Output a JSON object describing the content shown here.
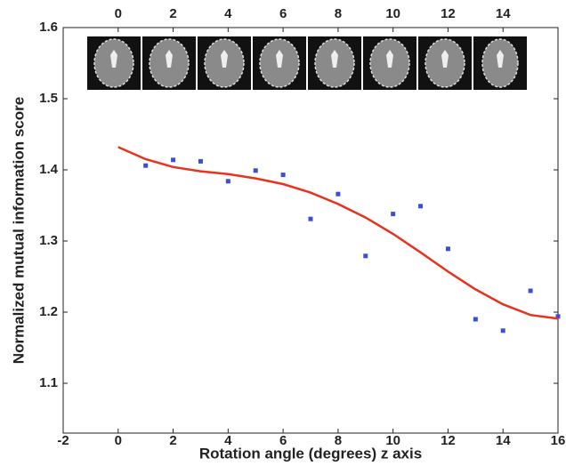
{
  "chart_data": {
    "type": "scatter",
    "xlabel": "Rotation angle (degrees) z axis",
    "ylabel": "Normalized mutual information score",
    "xlim": [
      -2,
      16
    ],
    "xticks": [
      -2,
      0,
      2,
      4,
      6,
      8,
      10,
      12,
      14,
      16
    ],
    "x2ticks": [
      0,
      2,
      4,
      6,
      8,
      10,
      12,
      14
    ],
    "ylim": [
      1.03,
      1.6
    ],
    "yticks": [
      1.1,
      1.2,
      1.3,
      1.4,
      1.5,
      1.6
    ],
    "series": [
      {
        "type": "scatter",
        "color": "#3b4fd6",
        "x": [
          1,
          2,
          3,
          4,
          5,
          6,
          7,
          8,
          9,
          10,
          11,
          12,
          13,
          14,
          15,
          16
        ],
        "values": [
          1.406,
          1.414,
          1.412,
          1.384,
          1.399,
          1.393,
          1.331,
          1.366,
          1.279,
          1.338,
          1.349,
          1.289,
          1.19,
          1.174,
          1.23,
          1.194
        ]
      },
      {
        "type": "line",
        "color": "#e8321e",
        "x": [
          0,
          1,
          2,
          3,
          4,
          5,
          6,
          7,
          8,
          9,
          10,
          11,
          12,
          13,
          14,
          15,
          16
        ],
        "values": [
          1.432,
          1.415,
          1.404,
          1.398,
          1.394,
          1.388,
          1.38,
          1.368,
          1.352,
          1.333,
          1.31,
          1.284,
          1.257,
          1.232,
          1.211,
          1.196,
          1.191
        ]
      }
    ]
  }
}
